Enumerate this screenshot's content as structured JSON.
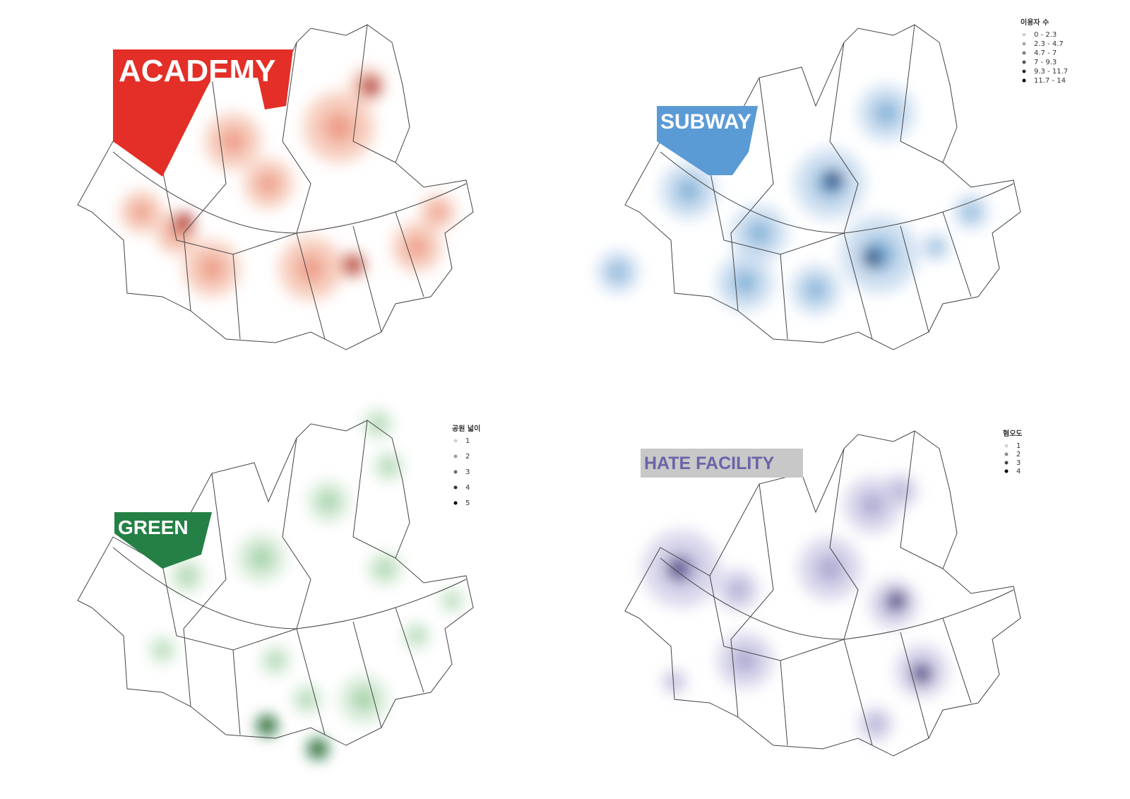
{
  "panels": [
    {
      "label": "ACADEMY"
    },
    {
      "label": "SUBWAY",
      "legend": {
        "title": "이용자 수",
        "items": [
          "0 - 2.3",
          "2.3 - 4.7",
          "4.7 - 7",
          "7 - 9.3",
          "9.3 - 11.7",
          "11.7 - 14"
        ]
      }
    },
    {
      "label": "GREEN",
      "legend": {
        "title": "공원 넓이",
        "items": [
          1,
          2,
          3,
          4,
          5
        ]
      }
    },
    {
      "label": "HATE FACILITY",
      "legend": {
        "title": "혐오도",
        "items": [
          1,
          2,
          3,
          4
        ]
      }
    }
  ]
}
